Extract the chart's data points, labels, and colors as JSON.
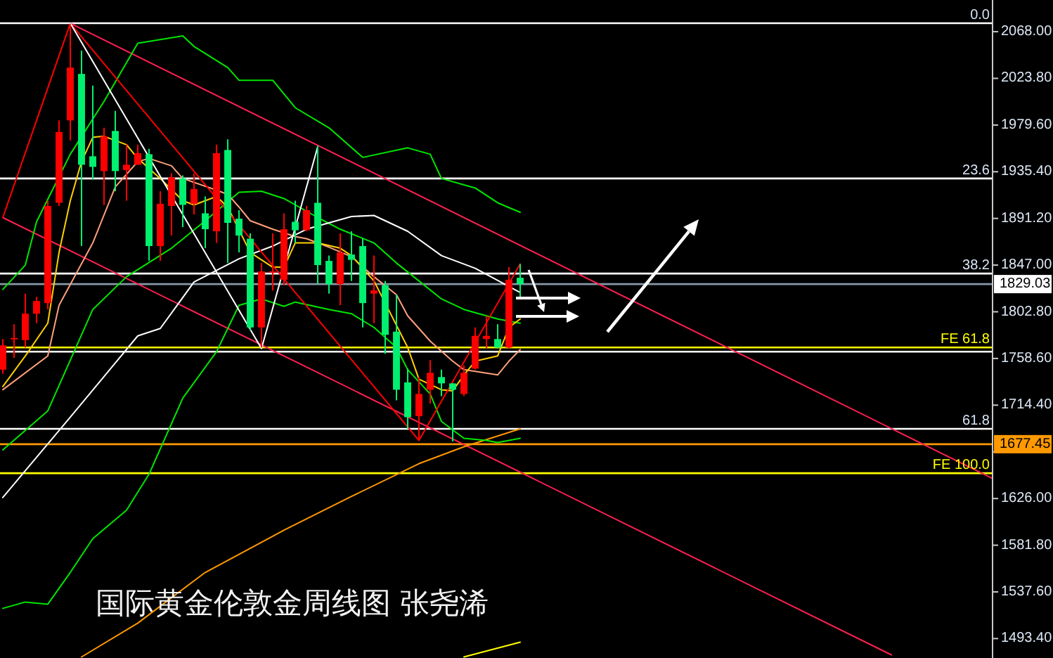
{
  "chart_data": {
    "type": "candlestick",
    "title": "国际黄金伦敦金周线图 张尧浠",
    "categories": [
      null,
      null,
      null,
      null,
      null,
      null,
      null,
      null,
      null,
      null,
      null,
      null,
      null,
      null,
      null,
      null,
      null,
      null,
      null,
      null,
      null,
      null,
      null,
      null,
      null,
      null,
      null,
      null,
      null,
      null,
      null,
      null,
      null,
      null,
      null,
      null,
      null,
      null,
      null,
      null,
      null,
      null,
      null,
      null,
      null,
      null,
      null,
      null,
      null,
      null,
      null,
      null,
      null,
      null,
      null,
      null,
      null,
      null,
      null,
      null,
      null,
      null,
      null,
      null,
      null,
      null,
      null,
      null,
      null,
      null,
      null,
      null,
      null,
      null,
      null,
      null,
      null,
      null,
      null,
      null,
      null,
      null,
      null,
      null,
      null,
      null,
      null,
      null,
      null
    ],
    "ohlc": [
      [
        1748,
        1777,
        1744,
        1771
      ],
      [
        1777,
        1791,
        1759,
        1778
      ],
      [
        1776,
        1820,
        1769,
        1801
      ],
      [
        1801,
        1817,
        1792,
        1813
      ],
      [
        1811,
        1908,
        1805,
        1903
      ],
      [
        1906,
        1984,
        1903,
        1973
      ],
      [
        1984,
        2075,
        1965,
        2034
      ],
      [
        2028,
        2050,
        1865,
        1942
      ],
      [
        1950,
        2017,
        1928,
        1940
      ],
      [
        1936,
        1977,
        1904,
        1969
      ],
      [
        1974,
        1993,
        1917,
        1936
      ],
      [
        1937,
        1961,
        1908,
        1942
      ],
      [
        1942,
        1961,
        1942,
        1953
      ],
      [
        1952,
        1957,
        1851,
        1865
      ],
      [
        1865,
        1917,
        1851,
        1905
      ],
      [
        1903,
        1934,
        1875,
        1930
      ],
      [
        1929,
        1932,
        1883,
        1904
      ],
      [
        1905,
        1934,
        1895,
        1919
      ],
      [
        1896,
        1912,
        1863,
        1881
      ],
      [
        1879,
        1961,
        1868,
        1953
      ],
      [
        1956,
        1966,
        1849,
        1887
      ],
      [
        1891,
        1899,
        1859,
        1875
      ],
      [
        1872,
        1877,
        1785,
        1788
      ],
      [
        1788,
        1849,
        1769,
        1841
      ],
      [
        1840,
        1877,
        1823,
        1841
      ],
      [
        1833,
        1896,
        1828,
        1881
      ],
      [
        1888,
        1908,
        1868,
        1880
      ],
      [
        1880,
        1903,
        1879,
        1899
      ],
      [
        1906,
        1960,
        1829,
        1847
      ],
      [
        1851,
        1856,
        1820,
        1829
      ],
      [
        1829,
        1877,
        1809,
        1859
      ],
      [
        1857,
        1879,
        1832,
        1852
      ],
      [
        1865,
        1872,
        1788,
        1811
      ],
      [
        1820,
        1856,
        1792,
        1823
      ],
      [
        1828,
        1832,
        1763,
        1781
      ],
      [
        1784,
        1819,
        1719,
        1729
      ],
      [
        1736,
        1749,
        1692,
        1703
      ],
      [
        1704,
        1741,
        1681,
        1725
      ],
      [
        1729,
        1757,
        1716,
        1745
      ],
      [
        1741,
        1748,
        1723,
        1735
      ],
      [
        1735,
        1735,
        1680,
        1729
      ],
      [
        1725,
        1752,
        1723,
        1745
      ],
      [
        1749,
        1788,
        1748,
        1780
      ],
      [
        1777,
        1799,
        1768,
        1780
      ],
      [
        1777,
        1791,
        1768,
        1769
      ],
      [
        1769,
        1845,
        1768,
        1833
      ],
      [
        1835,
        1848,
        1817,
        1829
      ],
      null,
      null,
      null,
      null,
      null,
      null,
      null,
      null,
      null,
      null,
      null,
      null,
      null,
      null,
      null,
      null,
      null,
      null,
      null,
      null,
      null,
      null,
      null,
      null,
      null,
      null,
      null,
      null,
      null,
      null,
      null,
      null,
      null,
      null,
      null,
      null,
      null,
      null,
      null,
      null,
      null,
      null
    ],
    "colors": [
      "#ff0000",
      "#ff0000",
      "#ff0000",
      "#ff0000",
      "#ff0000",
      "#ff0000",
      "#ff0000",
      "#00f070",
      "#00f070",
      "#ff0000",
      "#00f070",
      "#ff0000",
      "#ff0000",
      "#00f070",
      "#ff0000",
      "#ff0000",
      "#00f070",
      "#ff0000",
      "#00f070",
      "#ff0000",
      "#00f070",
      "#00f070",
      "#00f070",
      "#ff0000",
      "#ff0000",
      "#ff0000",
      "#00f070",
      "#ff0000",
      "#00f070",
      "#00f070",
      "#ff0000",
      "#00f070",
      "#00f070",
      "#ff0000",
      "#00f070",
      "#00f070",
      "#00f070",
      "#ff0000",
      "#ff0000",
      "#00f070",
      "#00f070",
      "#ff0000",
      "#ff0000",
      "#ff0000",
      "#00f070",
      "#ff0000",
      "#00f070",
      null,
      null,
      null,
      null,
      null,
      null,
      null,
      null,
      null,
      null,
      null,
      null,
      null,
      null,
      null,
      null,
      null,
      null,
      null,
      null,
      null,
      null,
      null,
      null,
      null,
      null,
      null,
      null,
      null,
      null,
      null,
      null,
      null,
      null,
      null,
      null,
      null,
      null,
      null,
      null,
      null,
      null
    ],
    "series": [
      {
        "type": "line",
        "color": "#ff2050",
        "values": [
          null,
          null,
          null,
          null,
          null,
          null,
          2076,
          null,
          null,
          null,
          null,
          null,
          null,
          null,
          null,
          null,
          null,
          null,
          null,
          null,
          null,
          null,
          null,
          null,
          null,
          null,
          null,
          null,
          null,
          null,
          null,
          null,
          null,
          null,
          null,
          null,
          null,
          null,
          null,
          null,
          null,
          null,
          null,
          null,
          null,
          null,
          null,
          null,
          null,
          null,
          null,
          null,
          null,
          null,
          null,
          null,
          null,
          null,
          null,
          null,
          null,
          null,
          null,
          null,
          null,
          null,
          null,
          null,
          null,
          null,
          null,
          null,
          null,
          null,
          null,
          null,
          null,
          null,
          null,
          null,
          null,
          null,
          null,
          null,
          null,
          null,
          null,
          null,
          1645
        ]
      },
      {
        "type": "line",
        "color": "#ff2050",
        "values": [
          1892,
          null,
          null,
          null,
          null,
          null,
          null,
          null,
          null,
          null,
          null,
          null,
          null,
          null,
          null,
          null,
          null,
          null,
          null,
          null,
          null,
          null,
          null,
          null,
          null,
          null,
          null,
          null,
          null,
          null,
          null,
          null,
          null,
          null,
          null,
          null,
          null,
          null,
          null,
          null,
          null,
          null,
          null,
          null,
          null,
          null,
          null,
          null,
          null,
          null,
          null,
          null,
          null,
          null,
          null,
          null,
          null,
          null,
          null,
          null,
          null,
          null,
          null,
          null,
          null,
          null,
          null,
          null,
          null,
          null,
          null,
          null,
          null,
          null,
          null,
          null,
          null,
          null,
          null,
          1478,
          null,
          null,
          null,
          null,
          null,
          null,
          null,
          null,
          null
        ]
      },
      {
        "type": "line",
        "color": "#ff9900",
        "values": [
          null,
          null,
          null,
          null,
          null,
          null,
          null,
          1476,
          null,
          null,
          null,
          null,
          1508,
          null,
          null,
          null,
          null,
          null,
          1556,
          null,
          null,
          null,
          null,
          null,
          null,
          1596,
          null,
          null,
          null,
          null,
          null,
          1628,
          null,
          null,
          null,
          null,
          null,
          1659,
          null,
          null,
          null,
          1675,
          null,
          null,
          null,
          null,
          1692,
          null,
          null,
          null,
          null,
          null,
          null,
          null,
          null,
          null,
          null,
          null,
          null,
          null,
          null,
          null,
          null,
          null,
          null,
          null,
          null,
          null,
          null,
          null,
          null,
          null,
          null,
          null,
          null,
          null,
          null,
          null,
          null,
          null,
          null,
          null,
          null,
          null,
          null,
          null,
          null,
          null,
          null
        ]
      },
      {
        "type": "line",
        "color": "#ffff00",
        "values": [
          null,
          null,
          null,
          null,
          null,
          null,
          null,
          null,
          null,
          null,
          null,
          null,
          null,
          null,
          null,
          null,
          null,
          null,
          null,
          null,
          null,
          null,
          null,
          null,
          null,
          null,
          null,
          null,
          null,
          null,
          null,
          null,
          null,
          null,
          null,
          null,
          null,
          null,
          null,
          null,
          null,
          1476,
          null,
          null,
          null,
          null,
          1490,
          null,
          null,
          null,
          null,
          null,
          null,
          null,
          null,
          null,
          null,
          null,
          null,
          null,
          null,
          null,
          null,
          null,
          null,
          null,
          null,
          null,
          null,
          null,
          null,
          null,
          null,
          null,
          null,
          null,
          null,
          null,
          null,
          null,
          null,
          null,
          null,
          null,
          null,
          null,
          null,
          null,
          null
        ]
      },
      {
        "type": "line",
        "color": "#00e600",
        "values": [
          1824,
          null,
          1847,
          1888,
          null,
          null,
          1952,
          null,
          null,
          2002,
          null,
          null,
          2057,
          null,
          null,
          null,
          2064,
          2054,
          null,
          null,
          2034,
          2022,
          null,
          null,
          2022,
          null,
          1996,
          null,
          null,
          1977,
          null,
          null,
          1949,
          null,
          null,
          null,
          1958,
          null,
          1952,
          1929,
          null,
          null,
          1920,
          null,
          1906,
          null,
          1897,
          null,
          null,
          null,
          null,
          null,
          null,
          null,
          null,
          null,
          null,
          null,
          null,
          null,
          null,
          null,
          null,
          null,
          null,
          null,
          null,
          null,
          null,
          null,
          null,
          null,
          null,
          null,
          null,
          null,
          null,
          null,
          null,
          null,
          null,
          null,
          null,
          null,
          null,
          null,
          null,
          null,
          null
        ]
      },
      {
        "type": "line",
        "color": "#00e600",
        "values": [
          1672,
          null,
          null,
          null,
          1709,
          null,
          null,
          null,
          1805,
          null,
          null,
          1836,
          null,
          null,
          null,
          1863,
          null,
          null,
          1889,
          null,
          null,
          1916,
          null,
          1917,
          null,
          1910,
          null,
          null,
          1892,
          null,
          1881,
          null,
          null,
          1868,
          null,
          1849,
          null,
          1832,
          null,
          1815,
          null,
          1805,
          null,
          null,
          1796,
          null,
          1792,
          null,
          null,
          null,
          null,
          null,
          null,
          null,
          null,
          null,
          null,
          null,
          null,
          null,
          null,
          null,
          null,
          null,
          null,
          null,
          null,
          null,
          null,
          null,
          null,
          null,
          null,
          null,
          null,
          null,
          null,
          null,
          null,
          null,
          null,
          null,
          null,
          null,
          null,
          null,
          null,
          null,
          null
        ]
      },
      {
        "type": "line",
        "color": "#00e600",
        "values": [
          1522,
          null,
          1528,
          null,
          1526,
          null,
          1556,
          null,
          1588,
          null,
          null,
          1615,
          null,
          1649,
          null,
          null,
          1721,
          null,
          null,
          1765,
          null,
          1809,
          null,
          1815,
          null,
          1808,
          1812,
          null,
          null,
          1805,
          null,
          1801,
          null,
          1788,
          null,
          1769,
          1748,
          null,
          1725,
          1699,
          null,
          1683,
          null,
          1681,
          1679,
          null,
          1683,
          null,
          null,
          null,
          null,
          null,
          null,
          null,
          null,
          null,
          null,
          null,
          null,
          null,
          null,
          null,
          null,
          null,
          null,
          null,
          null,
          null,
          null,
          null,
          null,
          null,
          null,
          null,
          null,
          null,
          null,
          null,
          null,
          null,
          null,
          null,
          null,
          null,
          null,
          null,
          null,
          null,
          null
        ]
      },
      {
        "type": "line",
        "color": "#ffffff",
        "values": [
          1627,
          null,
          null,
          null,
          null,
          null,
          1703,
          null,
          null,
          null,
          null,
          null,
          1780,
          null,
          1787,
          null,
          null,
          1831,
          null,
          null,
          null,
          1853,
          null,
          null,
          1865,
          null,
          null,
          1881,
          null,
          null,
          null,
          1893,
          null,
          1894,
          null,
          null,
          1879,
          null,
          null,
          1856,
          null,
          null,
          1844,
          null,
          null,
          null,
          1821,
          null,
          null,
          null,
          null,
          null,
          null,
          null,
          null,
          null,
          null,
          null,
          null,
          null,
          null,
          null,
          null,
          null,
          null,
          null,
          null,
          null,
          null,
          null,
          null,
          null,
          null,
          null,
          null,
          null,
          null,
          null,
          null,
          null,
          null,
          null,
          null,
          null,
          null,
          null,
          null,
          null,
          null
        ]
      },
      {
        "type": "line",
        "color": "#ffa07a",
        "values": [
          1729,
          null,
          null,
          null,
          1761,
          1809,
          null,
          null,
          1868,
          null,
          1921,
          null,
          1945,
          1948,
          null,
          1941,
          1929,
          null,
          null,
          1918,
          1914,
          1902,
          1889,
          null,
          1881,
          null,
          1874,
          1872,
          null,
          1864,
          null,
          1855,
          null,
          1836,
          null,
          1819,
          1799,
          null,
          1775,
          null,
          1756,
          1748,
          null,
          null,
          1743,
          1756,
          1767,
          null,
          null,
          null,
          null,
          null,
          null,
          null,
          null,
          null,
          null,
          null,
          null,
          null,
          null,
          null,
          null,
          null,
          null,
          null,
          null,
          null,
          null,
          null,
          null,
          null,
          null,
          null,
          null,
          null,
          null,
          null,
          null,
          null,
          null,
          null,
          null,
          null,
          null,
          null,
          null,
          null,
          null
        ]
      },
      {
        "type": "line",
        "color": "#ffd000",
        "values": [
          1732,
          null,
          1761,
          null,
          1792,
          1859,
          1908,
          1945,
          1968,
          1969,
          null,
          1961,
          1948,
          null,
          1929,
          null,
          1908,
          1904,
          null,
          1912,
          1902,
          null,
          1859,
          null,
          1845,
          1845,
          1868,
          null,
          1868,
          null,
          1863,
          1856,
          null,
          1832,
          null,
          null,
          1769,
          1739,
          null,
          1729,
          1728,
          1743,
          1756,
          null,
          1761,
          1788,
          1796,
          null,
          null,
          null,
          null,
          null,
          null,
          null,
          null,
          null,
          null,
          null,
          null,
          null,
          null,
          null,
          null,
          null,
          null,
          null,
          null,
          null,
          null,
          null,
          null,
          null,
          null,
          null,
          null,
          null,
          null,
          null,
          null,
          null,
          null,
          null,
          null,
          null,
          null,
          null,
          null,
          null,
          null
        ]
      },
      {
        "type": "line",
        "color": "#ff0000",
        "values": [
          1892,
          null,
          null,
          null,
          null,
          null,
          2076,
          null,
          null,
          null,
          null,
          null,
          null,
          null,
          null,
          null,
          null,
          null,
          null,
          null,
          null,
          null,
          null,
          null,
          null,
          null,
          null,
          null,
          null,
          null,
          null,
          null,
          null,
          null,
          null,
          null,
          null,
          1681,
          null,
          null,
          null,
          null,
          null,
          null,
          null,
          null,
          1848,
          null,
          null,
          null,
          null,
          null,
          null,
          null,
          null,
          null,
          null,
          null,
          null,
          null,
          null,
          null,
          null,
          null,
          null,
          null,
          null,
          null,
          null,
          null,
          null,
          null,
          null,
          null,
          null,
          null,
          null,
          null,
          null,
          null,
          null,
          null,
          null,
          null,
          null,
          null,
          null,
          null,
          null
        ]
      },
      {
        "type": "line",
        "color": "#ffffff",
        "values": [
          null,
          null,
          null,
          null,
          null,
          null,
          2076,
          null,
          null,
          null,
          null,
          null,
          null,
          null,
          null,
          null,
          null,
          null,
          null,
          null,
          null,
          null,
          null,
          1768,
          null,
          null,
          null,
          null,
          1959,
          null,
          null,
          null,
          null,
          null,
          null,
          null,
          null,
          null,
          null,
          null,
          null,
          null,
          null,
          null,
          null,
          null,
          null,
          null,
          null,
          null,
          null,
          null,
          null,
          null,
          null,
          null,
          null,
          null,
          null,
          null,
          null,
          null,
          null,
          null,
          null,
          null,
          null,
          null,
          null,
          null,
          null,
          null,
          null,
          null,
          null,
          null,
          null,
          null,
          null,
          null,
          null,
          null,
          null,
          null,
          null,
          null,
          null,
          null,
          null
        ]
      }
    ],
    "ref_lines": [
      {
        "axis": "y",
        "value": 2076,
        "color": "#ffffff"
      },
      {
        "axis": "y",
        "value": 1929,
        "color": "#ffffff"
      },
      {
        "axis": "y",
        "value": 1839,
        "color": "#ffffff"
      },
      {
        "axis": "y",
        "value": 1765,
        "color": "#ffffff"
      },
      {
        "axis": "y",
        "value": 1692,
        "color": "#ffffff"
      },
      {
        "axis": "y",
        "value": 1769,
        "color": "#ffff00"
      },
      {
        "axis": "y",
        "value": 1650,
        "color": "#ffff00"
      },
      {
        "axis": "y",
        "value": 1829.03,
        "label": "1829.03",
        "color": "#8898a8"
      },
      {
        "axis": "y",
        "value": 1677.45,
        "label": "1677.45",
        "color": "#ff9900"
      }
    ],
    "annotations": [
      {
        "text": "0.0",
        "y": 2076
      },
      {
        "text": "23.6",
        "y": 1929
      },
      {
        "text": "38.2",
        "y": 1839
      },
      {
        "text": "61.8",
        "y": 1692
      },
      {
        "text": "FE 61.8",
        "y": 1769
      },
      {
        "text": "FE 100.0",
        "y": 1650
      }
    ],
    "ylim": [
      1475,
      2098
    ],
    "yticks": [
      {
        "value": 2068,
        "label": "2068.00"
      },
      {
        "value": 2023.8,
        "label": "2023.80"
      },
      {
        "value": 1979.6,
        "label": "1979.60"
      },
      {
        "value": 1935.4,
        "label": "1935.40"
      },
      {
        "value": 1891.2,
        "label": "1891.20"
      },
      {
        "value": 1847,
        "label": "1847.00"
      },
      {
        "value": 1802.8,
        "label": "1802.80"
      },
      {
        "value": 1758.6,
        "label": "1758.60"
      },
      {
        "value": 1714.4,
        "label": "1714.40"
      },
      {
        "value": 1670.2,
        "label": null
      },
      {
        "value": 1626,
        "label": "1626.00"
      },
      {
        "value": 1581.8,
        "label": "1581.80"
      },
      {
        "value": 1537.6,
        "label": "1537.60"
      },
      {
        "value": 1493.4,
        "label": "1493.40"
      }
    ]
  }
}
